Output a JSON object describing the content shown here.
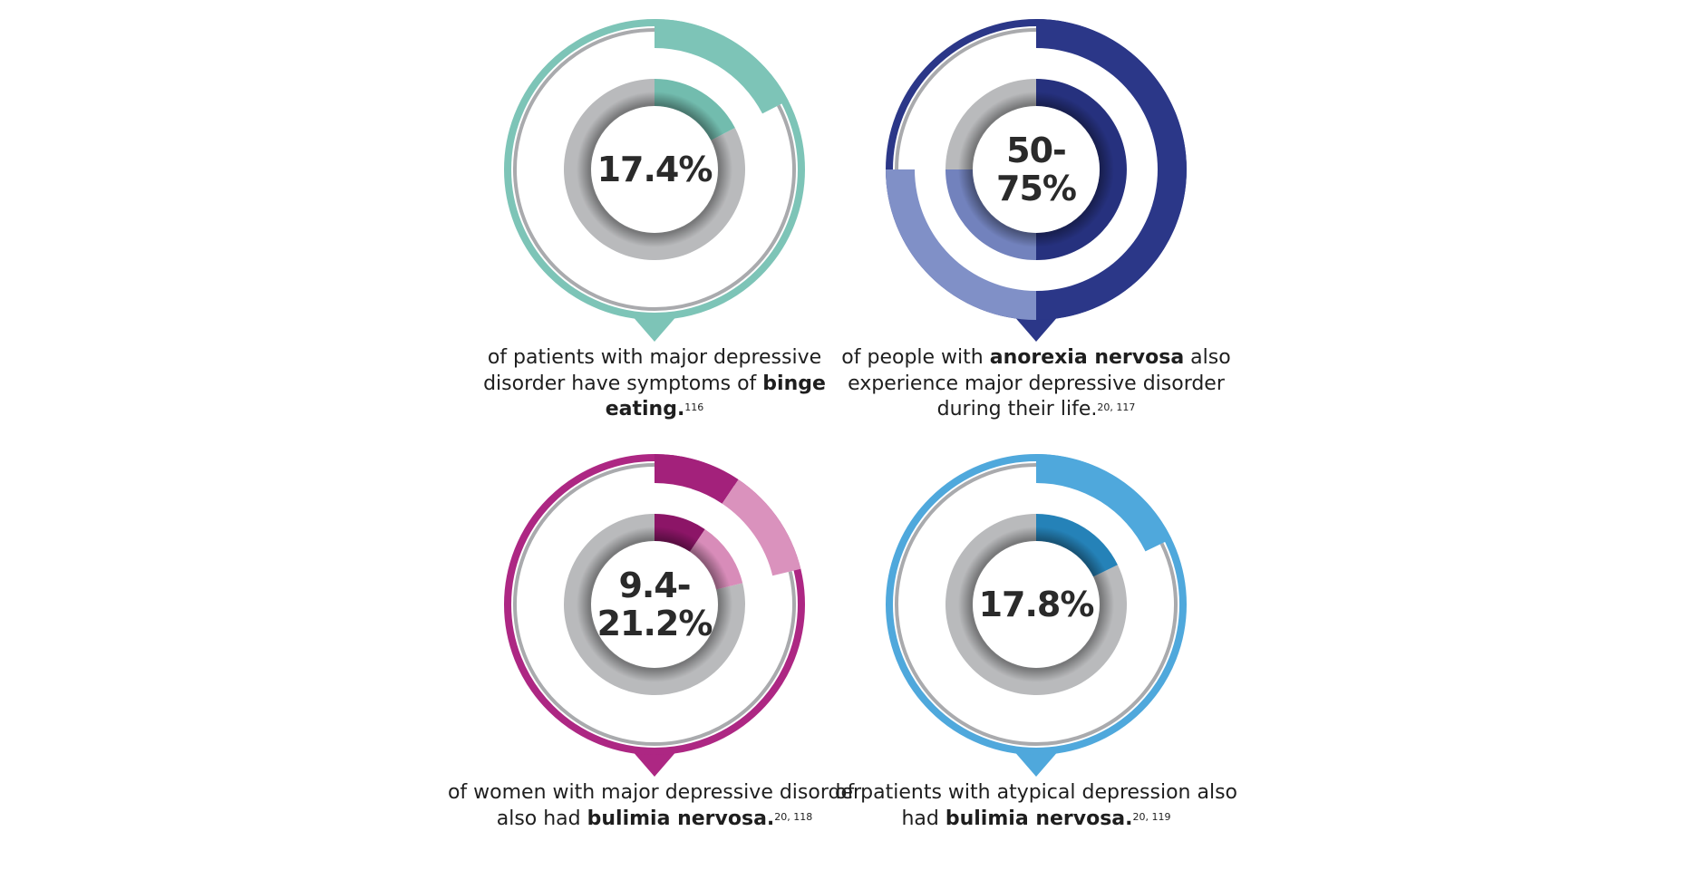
{
  "stats": [
    {
      "label": "17.4%",
      "label_lines": [
        "17.4%"
      ],
      "value_start": 17.4,
      "value_end": 17.4,
      "caption_pre": "of patients with major depressive disorder have symptoms of ",
      "caption_bold": "binge eating.",
      "caption_post": "",
      "refs": "116",
      "colors": {
        "ring": "#7dc4b7",
        "primary": "#7dc4b7",
        "inner_primary": "#72bcae",
        "secondary": "#7dc4b7",
        "inner_secondary": "#72bcae"
      }
    },
    {
      "label": "50-75%",
      "label_lines": [
        "50-",
        "75%"
      ],
      "value_start": 50,
      "value_end": 75,
      "caption_pre": "of people with ",
      "caption_bold": "anorexia nervosa",
      "caption_post": " also experience major depressive disorder during their life.",
      "refs": "20, 117",
      "colors": {
        "ring": "#2b3788",
        "primary": "#2b3788",
        "inner_primary": "#26317e",
        "secondary": "#8090c7",
        "inner_secondary": "#7282bd"
      }
    },
    {
      "label": "9.4-21.2%",
      "label_lines": [
        "9.4-",
        "21.2%"
      ],
      "value_start": 9.4,
      "value_end": 21.2,
      "caption_pre": "of women with major depressive disorder also had ",
      "caption_bold": "bulimia nervosa.",
      "caption_post": "",
      "refs": "20, 118",
      "colors": {
        "ring": "#ad2783",
        "primary": "#a3217b",
        "inner_primary": "#8c1567",
        "secondary": "#da92bd",
        "inner_secondary": "#d88cb9"
      }
    },
    {
      "label": "17.8%",
      "label_lines": [
        "17.8%"
      ],
      "value_start": 17.8,
      "value_end": 17.8,
      "caption_pre": "of patients with atypical depression also had ",
      "caption_bold": "bulimia nervosa.",
      "caption_post": "",
      "refs": "20, 119",
      "colors": {
        "ring": "#4fa8dc",
        "primary": "#4fa8dc",
        "inner_primary": "#2582b8",
        "secondary": "#4fa8dc",
        "inner_secondary": "#2582b8"
      }
    }
  ],
  "neutral_color": "#b9babc"
}
